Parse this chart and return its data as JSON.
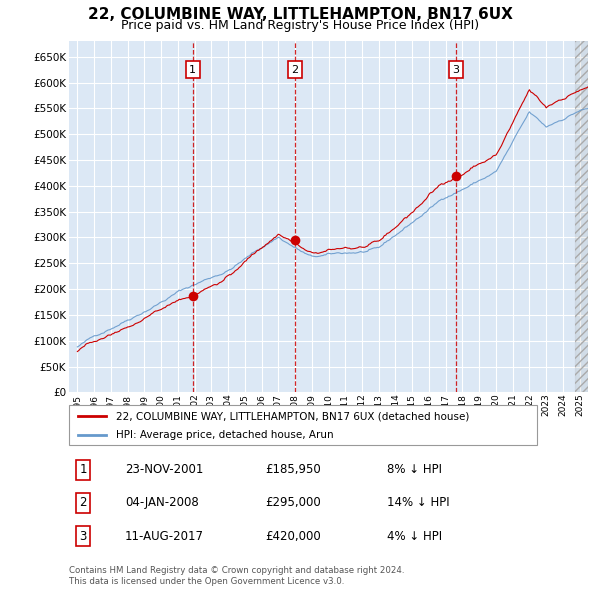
{
  "title": "22, COLUMBINE WAY, LITTLEHAMPTON, BN17 6UX",
  "subtitle": "Price paid vs. HM Land Registry's House Price Index (HPI)",
  "title_fontsize": 11,
  "subtitle_fontsize": 9,
  "background_color": "#ffffff",
  "plot_bg_color": "#dce8f5",
  "grid_color": "#ffffff",
  "ylim": [
    0,
    680000
  ],
  "yticks": [
    0,
    50000,
    100000,
    150000,
    200000,
    250000,
    300000,
    350000,
    400000,
    450000,
    500000,
    550000,
    600000,
    650000
  ],
  "ytick_labels": [
    "£0",
    "£50K",
    "£100K",
    "£150K",
    "£200K",
    "£250K",
    "£300K",
    "£350K",
    "£400K",
    "£450K",
    "£500K",
    "£550K",
    "£600K",
    "£650K"
  ],
  "xlim_start": 1994.5,
  "xlim_end": 2025.5,
  "sale_dates": [
    2001.896,
    2008.01,
    2017.618
  ],
  "sale_prices": [
    185950,
    295000,
    420000
  ],
  "sale_labels": [
    "1",
    "2",
    "3"
  ],
  "sale_date_strs": [
    "23-NOV-2001",
    "04-JAN-2008",
    "11-AUG-2017"
  ],
  "sale_price_strs": [
    "£185,950",
    "£295,000",
    "£420,000"
  ],
  "sale_hpi_strs": [
    "8% ↓ HPI",
    "14% ↓ HPI",
    "4% ↓ HPI"
  ],
  "red_line_color": "#cc0000",
  "blue_line_color": "#6699cc",
  "dashed_line_color": "#cc0000",
  "legend_label_red": "22, COLUMBINE WAY, LITTLEHAMPTON, BN17 6UX (detached house)",
  "legend_label_blue": "HPI: Average price, detached house, Arun",
  "footer_text": "Contains HM Land Registry data © Crown copyright and database right 2024.\nThis data is licensed under the Open Government Licence v3.0."
}
